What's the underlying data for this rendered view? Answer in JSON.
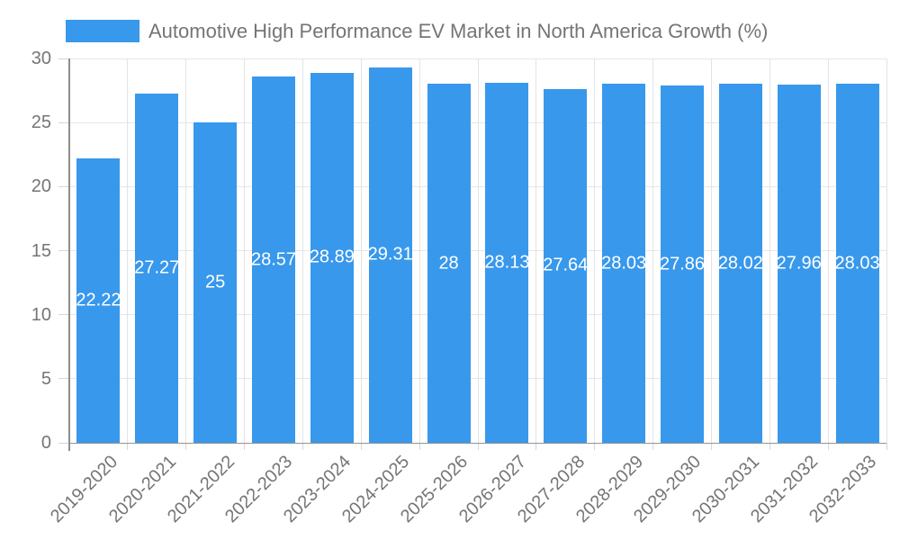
{
  "legend": {
    "label": "Automotive High Performance EV Market in North America Growth (%)"
  },
  "chart_data": {
    "type": "bar",
    "title": "Automotive High Performance EV Market in North America Growth (%)",
    "categories": [
      "2019-2020",
      "2020-2021",
      "2021-2022",
      "2022-2023",
      "2023-2024",
      "2024-2025",
      "2025-2026",
      "2026-2027",
      "2027-2028",
      "2028-2029",
      "2029-2030",
      "2030-2031",
      "2031-2032",
      "2032-2033"
    ],
    "values": [
      22.22,
      27.27,
      25,
      28.57,
      28.89,
      29.31,
      28,
      28.13,
      27.64,
      28.03,
      27.86,
      28.02,
      27.96,
      28.03
    ],
    "bar_labels": [
      "22.22",
      "27.27",
      "25",
      "28.57",
      "28.89",
      "29.31",
      "28",
      "28.13",
      "27.64",
      "28.03",
      "27.86",
      "28.02",
      "27.96",
      "28.03"
    ],
    "xlabel": "",
    "ylabel": "",
    "ylim": [
      0,
      30
    ],
    "y_ticks": [
      0,
      5,
      10,
      15,
      20,
      25,
      30
    ],
    "grid": true,
    "legend_position": "top-left",
    "colors": {
      "bar": "#3898ec",
      "axis_text": "#757575",
      "bar_value_text": "#ffffff",
      "gridline": "#e7e7e7",
      "axis_line": "#8d8d8d",
      "tick": "#d6d6d6",
      "background": "#ffffff"
    }
  }
}
